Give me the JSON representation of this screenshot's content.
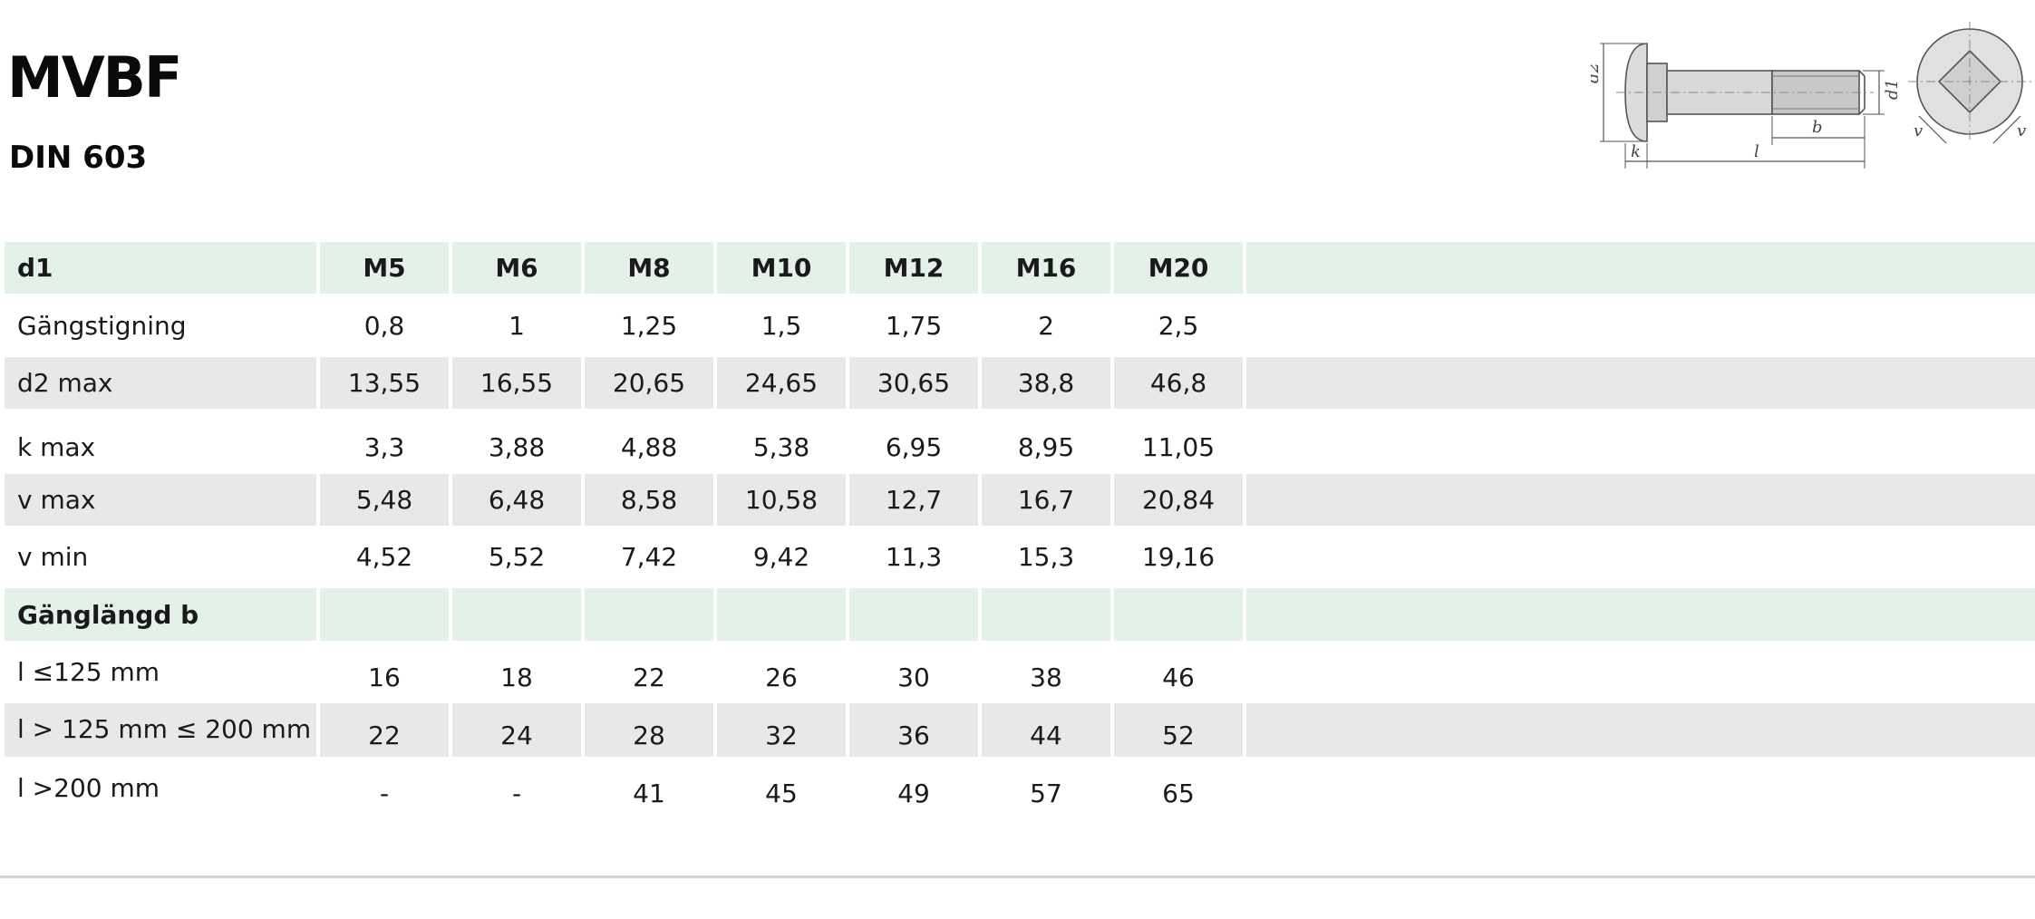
{
  "title": "MVBF",
  "subtitle": "DIN 603",
  "drawing": {
    "labels": {
      "d2": "d2",
      "d1": "d1",
      "k": "k",
      "l": "l",
      "b": "b",
      "v_left": "v",
      "v_right": "v"
    }
  },
  "table": {
    "header": {
      "label": "d1",
      "values": [
        "M5",
        "M6",
        "M8",
        "M10",
        "M12",
        "M16",
        "M20"
      ]
    },
    "rows": [
      {
        "label": "Gängstigning",
        "values": [
          "0,8",
          "1",
          "1,25",
          "1,5",
          "1,75",
          "2",
          "2,5"
        ]
      },
      {
        "label": "d2 max",
        "values": [
          "13,55",
          "16,55",
          "20,65",
          "24,65",
          "30,65",
          "38,8",
          "46,8"
        ]
      },
      {
        "label": "k max",
        "values": [
          "3,3",
          "3,88",
          "4,88",
          "5,38",
          "6,95",
          "8,95",
          "11,05"
        ]
      },
      {
        "label": "v max",
        "values": [
          "5,48",
          "6,48",
          "8,58",
          "10,58",
          "12,7",
          "16,7",
          "20,84"
        ]
      },
      {
        "label": "v min",
        "values": [
          "4,52",
          "5,52",
          "7,42",
          "9,42",
          "11,3",
          "15,3",
          "19,16"
        ]
      }
    ],
    "section": {
      "label": "Gänglängd b"
    },
    "section_rows": [
      {
        "label": "l ≤125 mm",
        "values": [
          "16",
          "18",
          "22",
          "26",
          "30",
          "38",
          "46"
        ]
      },
      {
        "label": "l > 125 mm ≤ 200 mm",
        "values": [
          "22",
          "24",
          "28",
          "32",
          "36",
          "44",
          "52"
        ]
      },
      {
        "label": "l >200 mm",
        "values": [
          "-",
          "-",
          "41",
          "45",
          "49",
          "57",
          "65"
        ]
      }
    ]
  }
}
